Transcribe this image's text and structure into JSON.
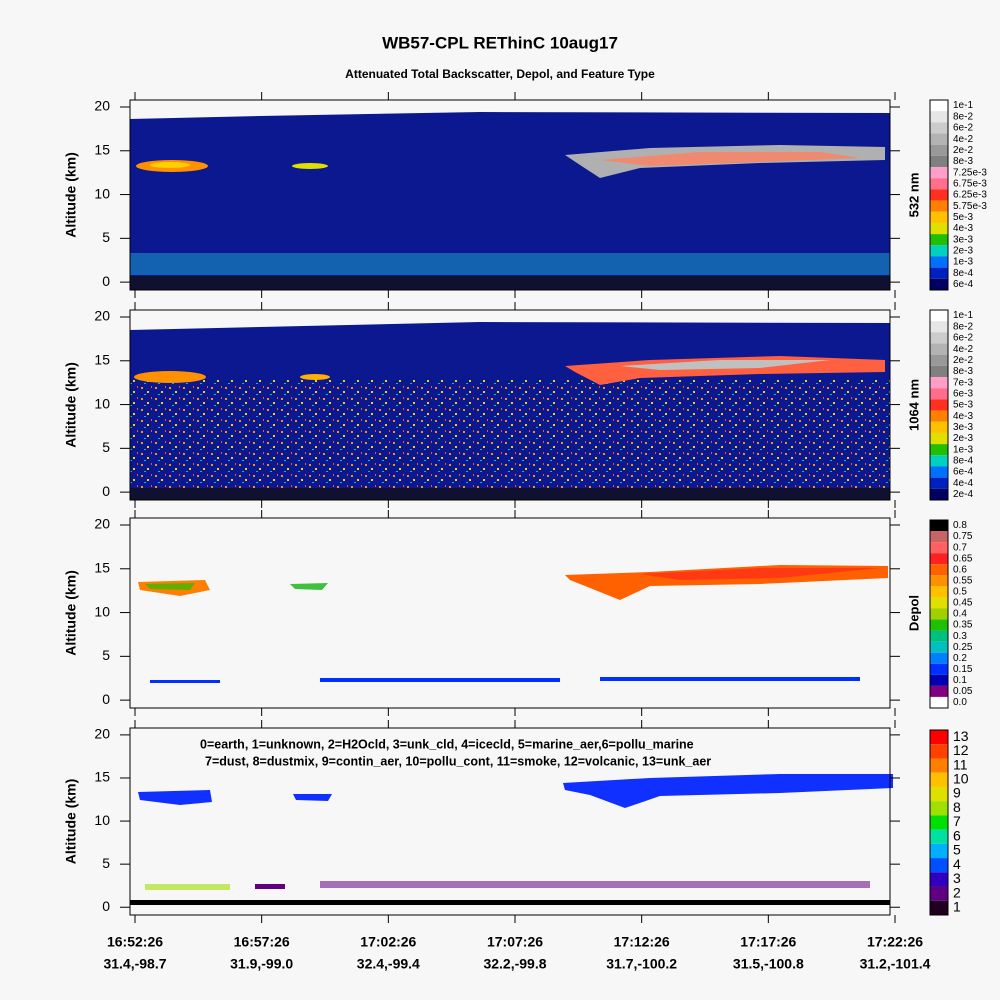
{
  "title": "WB57-CPL REThinC 10aug17",
  "subtitle": "Attenuated Total Backscatter, Depol, and Feature Type",
  "x_time_labels": [
    "16:52:26",
    "16:57:26",
    "17:02:26",
    "17:07:26",
    "17:12:26",
    "17:17:26",
    "17:22:26"
  ],
  "x_position_labels": [
    "31.4,-98.7",
    "31.9,-99.0",
    "32.4,-99.4",
    "32.2,-99.8",
    "31.7,-100.2",
    "31.5,-100.8",
    "31.2,-101.4"
  ],
  "chart_data": [
    {
      "type": "heatmap",
      "ylabel": "Altitude (km)",
      "colorbar_label": "532 nm",
      "ylim": [
        -0.9,
        20.8
      ],
      "yticks": [
        0,
        5,
        10,
        15,
        20
      ],
      "colorbar_ticks": [
        {
          "value": 0.1,
          "label": "1e-1"
        },
        {
          "value": 0.08,
          "label": "8e-2"
        },
        {
          "value": 0.06,
          "label": "6e-2"
        },
        {
          "value": 0.04,
          "label": "4e-2"
        },
        {
          "value": 0.02,
          "label": "2e-2"
        },
        {
          "value": 0.008,
          "label": "8e-3"
        },
        {
          "value": 0.00725,
          "label": "7.25e-3"
        },
        {
          "value": 0.00675,
          "label": "6.75e-3"
        },
        {
          "value": 0.00625,
          "label": "6.25e-3"
        },
        {
          "value": 0.00575,
          "label": "5.75e-3"
        },
        {
          "value": 0.005,
          "label": "5e-3"
        },
        {
          "value": 0.004,
          "label": "4e-3"
        },
        {
          "value": 0.003,
          "label": "3e-3"
        },
        {
          "value": 0.002,
          "label": "2e-3"
        },
        {
          "value": 0.001,
          "label": "1e-3"
        },
        {
          "value": 0.0008,
          "label": "8e-4"
        },
        {
          "value": 0.0006,
          "label": "6e-4"
        }
      ],
      "colorbar_colors": [
        "#ffffff",
        "#e6e6e6",
        "#cccccc",
        "#b3b3b3",
        "#999999",
        "#808080",
        "#ff9ec8",
        "#ff6e8a",
        "#ff3020",
        "#ff8000",
        "#ffc000",
        "#e0e000",
        "#20c000",
        "#00d0c0",
        "#0070ff",
        "#0020c0",
        "#000060"
      ]
    },
    {
      "type": "heatmap",
      "ylabel": "Altitude (km)",
      "colorbar_label": "1064 nm",
      "ylim": [
        -0.9,
        20.8
      ],
      "yticks": [
        0,
        5,
        10,
        15,
        20
      ],
      "colorbar_ticks": [
        {
          "value": 0.1,
          "label": "1e-1"
        },
        {
          "value": 0.08,
          "label": "8e-2"
        },
        {
          "value": 0.06,
          "label": "6e-2"
        },
        {
          "value": 0.04,
          "label": "4e-2"
        },
        {
          "value": 0.02,
          "label": "2e-2"
        },
        {
          "value": 0.008,
          "label": "8e-3"
        },
        {
          "value": 0.007,
          "label": "7e-3"
        },
        {
          "value": 0.006,
          "label": "6e-3"
        },
        {
          "value": 0.005,
          "label": "5e-3"
        },
        {
          "value": 0.004,
          "label": "4e-3"
        },
        {
          "value": 0.003,
          "label": "3e-3"
        },
        {
          "value": 0.002,
          "label": "2e-3"
        },
        {
          "value": 0.001,
          "label": "1e-3"
        },
        {
          "value": 0.0008,
          "label": "8e-4"
        },
        {
          "value": 0.0006,
          "label": "6e-4"
        },
        {
          "value": 0.0004,
          "label": "4e-4"
        },
        {
          "value": 0.0002,
          "label": "2e-4"
        }
      ],
      "colorbar_colors": [
        "#ffffff",
        "#e6e6e6",
        "#cccccc",
        "#b3b3b3",
        "#999999",
        "#808080",
        "#ff9ec8",
        "#ff6e8a",
        "#ff3020",
        "#ff8000",
        "#ffc000",
        "#e0e000",
        "#20c000",
        "#00d0c0",
        "#0070ff",
        "#0020c0",
        "#000060"
      ]
    },
    {
      "type": "heatmap",
      "ylabel": "Altitude (km)",
      "colorbar_label": "Depol",
      "ylim": [
        -0.9,
        20.8
      ],
      "yticks": [
        0,
        5,
        10,
        15,
        20
      ],
      "colorbar_ticks": [
        0.8,
        0.75,
        0.7,
        0.65,
        0.6,
        0.55,
        0.5,
        0.45,
        0.4,
        0.35,
        0.3,
        0.25,
        0.2,
        0.15,
        0.1,
        0.05,
        {
          "value": 0,
          "label": "0.0"
        }
      ],
      "colorbar_colors": [
        "#000000",
        "#c86464",
        "#ff6060",
        "#ff2020",
        "#ff6000",
        "#ff9000",
        "#ffc000",
        "#e0e000",
        "#a0d000",
        "#20c000",
        "#00c080",
        "#00c0c0",
        "#0080ff",
        "#0030ff",
        "#0000b0",
        "#800080",
        "#ffffff"
      ]
    },
    {
      "type": "heatmap",
      "ylabel": "Altitude (km)",
      "ylim": [
        -0.9,
        20.8
      ],
      "yticks": [
        0,
        5,
        10,
        15,
        20
      ],
      "annotations": [
        "0=earth, 1=unknown, 2=H2Ocld, 3=unk_cld, 4=icecld, 5=marine_aer,6=pollu_marine",
        "7=dust, 8=dustmix, 9=contin_aer, 10=pollu_cont, 11=smoke, 12=volcanic, 13=unk_aer"
      ],
      "colorbar_ticks": [
        13,
        12,
        11,
        10,
        9,
        8,
        7,
        6,
        5,
        4,
        3,
        2,
        1
      ],
      "colorbar_colors": [
        "#ff0000",
        "#ff4000",
        "#ff8000",
        "#ffc000",
        "#e0e000",
        "#a0e000",
        "#00e000",
        "#00e0a0",
        "#00b0ff",
        "#0050ff",
        "#3000c0",
        "#600080",
        "#200020"
      ]
    }
  ]
}
